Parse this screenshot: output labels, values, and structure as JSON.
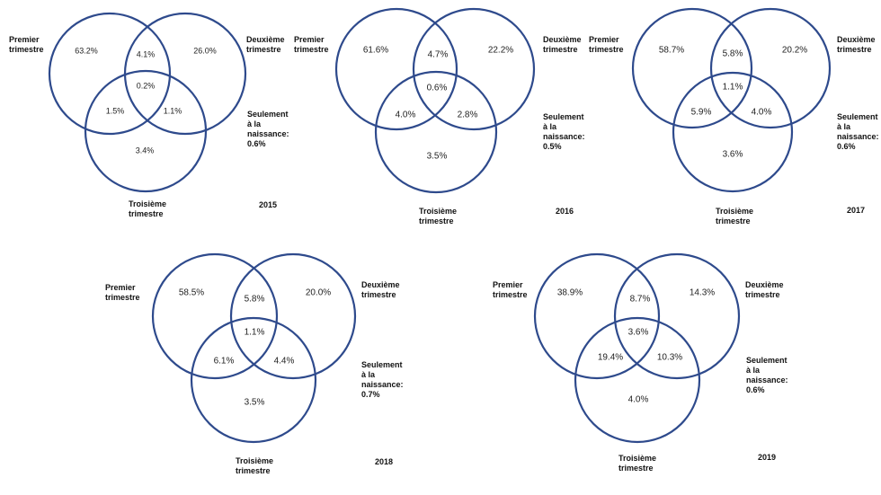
{
  "labels": {
    "first": [
      "Premier",
      "trimestre"
    ],
    "second": [
      "Deuxième",
      "trimestre"
    ],
    "third": [
      "Troisième",
      "trimestre"
    ],
    "birth": [
      "Seulement",
      "à la",
      "naissance:"
    ]
  },
  "diagrams": [
    {
      "year": "2015",
      "first_only": "63.2%",
      "second_only": "26.0%",
      "first_second": "4.1%",
      "all_three": "0.2%",
      "first_third": "1.5%",
      "second_third": "1.1%",
      "third_only": "3.4%",
      "birth_only": "0.6%"
    },
    {
      "year": "2016",
      "first_only": "61.6%",
      "second_only": "22.2%",
      "first_second": "4.7%",
      "all_three": "0.6%",
      "first_third": "4.0%",
      "second_third": "2.8%",
      "third_only": "3.5%",
      "birth_only": "0.5%"
    },
    {
      "year": "2017",
      "first_only": "58.7%",
      "second_only": "20.2%",
      "first_second": "5.8%",
      "all_three": "1.1%",
      "first_third": "5.9%",
      "second_third": "4.0%",
      "third_only": "3.6%",
      "birth_only": "0.6%"
    },
    {
      "year": "2018",
      "first_only": "58.5%",
      "second_only": "20.0%",
      "first_second": "5.8%",
      "all_three": "1.1%",
      "first_third": "6.1%",
      "second_third": "4.4%",
      "third_only": "3.5%",
      "birth_only": "0.7%"
    },
    {
      "year": "2019",
      "first_only": "38.9%",
      "second_only": "14.3%",
      "first_second": "8.7%",
      "all_three": "3.6%",
      "first_third": "19.4%",
      "second_third": "10.3%",
      "third_only": "4.0%",
      "birth_only": "0.6%"
    }
  ]
}
